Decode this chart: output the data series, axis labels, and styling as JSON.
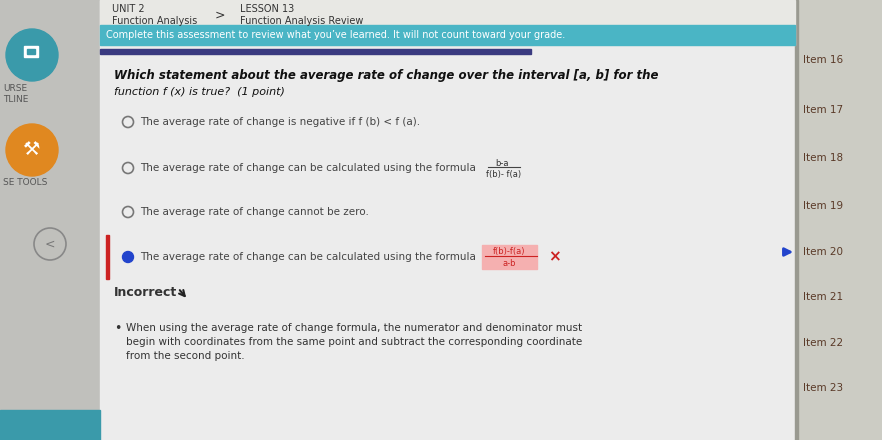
{
  "bg_color": "#d0d0cc",
  "left_sidebar_bg": "#c0c0bc",
  "content_bg": "#ececec",
  "right_sidebar_bg": "#ccccc4",
  "header_area_bg": "#e8e8e4",
  "cyan_bar_color": "#4ab5c5",
  "dark_blue_bar_color": "#3a3a80",
  "red_bar_color": "#cc2222",
  "blue_arrow_color": "#2244cc",
  "teal_circle_color": "#3a9aaa",
  "orange_circle_color": "#e08820",
  "item_color": "#5a3a28",
  "item_divider_color": "#999990",
  "header_text_1": "UNIT 2",
  "header_text_2": "Function Analysis",
  "lesson_text_1": "LESSON 13",
  "lesson_text_2": "Function Analysis Review",
  "breadcrumb_arrow": ">",
  "banner_text": "Complete this assessment to review what you’ve learned. It will not count toward your grade.",
  "question_line1": "Which statement about the average rate of change over the interval [a, b] for the",
  "question_line2": "function f (x) is true?  (1 point)",
  "option1": "The average rate of change is negative if f (b) < f (a).",
  "option2_text": "The average rate of change can be calculated using the formula",
  "option3": "The average rate of change cannot be zero.",
  "option4_text": "The average rate of change can be calculated using the formula",
  "incorrect_label": "Incorrect",
  "bullet_text_line1": "When using the average rate of change formula, the numerator and denominator must",
  "bullet_text_line2": "begin with coordinates from the same point and subtract the corresponding coordinate",
  "bullet_text_line3": "from the second point.",
  "left_sidebar_label1": "URSE",
  "left_sidebar_label2": "TLINE",
  "left_sidebar_label3": "SE TOOLS",
  "right_items": [
    "Item 16",
    "Item 17",
    "Item 18",
    "Item 19",
    "Item 20",
    "Item 21",
    "Item 22",
    "Item 23"
  ],
  "formula2_num": "b-a",
  "formula2_den": "f(b)- f(a)",
  "formula4_num": "f(b)-f(a)",
  "formula4_den": "a-b",
  "formula4_bg": "#f5b0b0",
  "formula4_text_color": "#cc2222",
  "x_mark_color": "#cc2222",
  "incorrect_color": "#333333",
  "question_color": "#111111",
  "option_text_color": "#444444",
  "radio_color": "#777777",
  "selected_radio_color": "#2244cc"
}
